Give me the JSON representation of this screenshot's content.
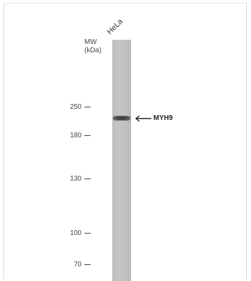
{
  "blot": {
    "sample": "HeLa",
    "mw_title": [
      "MW",
      "(kDa)"
    ],
    "markers": [
      {
        "label": "250",
        "kda": 250
      },
      {
        "label": "180",
        "kda": 180
      },
      {
        "label": "130",
        "kda": 130
      },
      {
        "label": "100",
        "kda": 100
      },
      {
        "label": "70",
        "kda": 70
      }
    ],
    "band_label": "MYH9"
  }
}
